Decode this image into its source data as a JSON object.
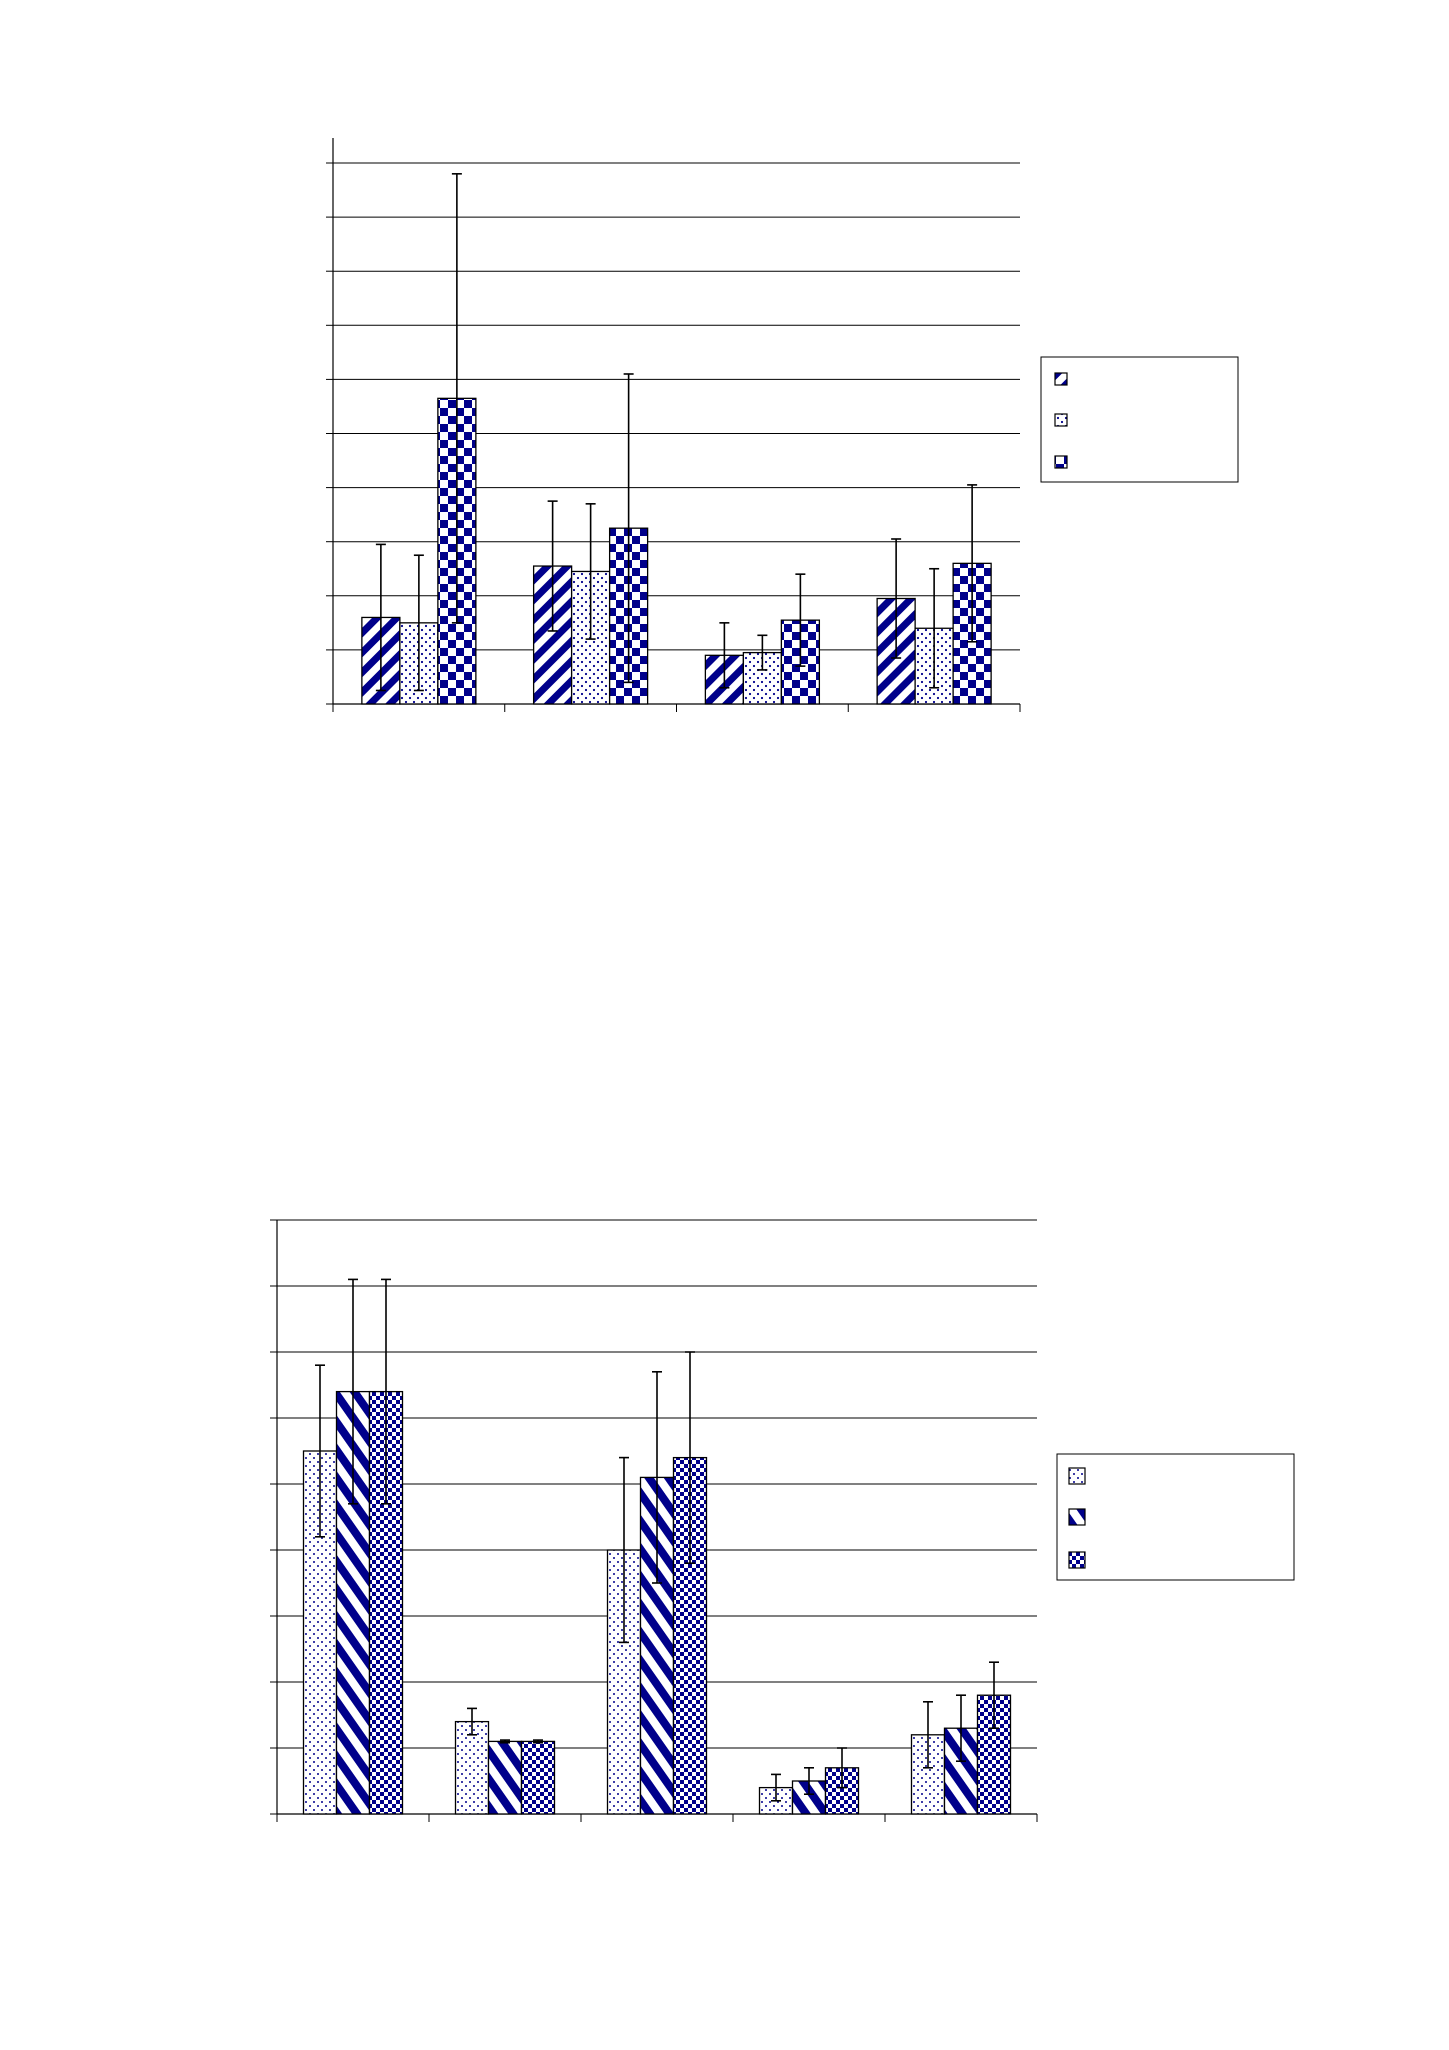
{
  "colors": {
    "navy": "#00008b",
    "grid": "#000000",
    "background": "#ffffff"
  },
  "chart_data": [
    {
      "type": "bar",
      "title": "",
      "xlabel": "",
      "ylabel": "",
      "ylim": [
        0,
        10
      ],
      "grid": true,
      "legend_position": "right",
      "categories": [
        "",
        "",
        "",
        ""
      ],
      "series": [
        {
          "pattern": "diagonal-stripes",
          "values": [
            1.6,
            2.55,
            0.9,
            1.95
          ],
          "errors": [
            1.35,
            1.2,
            0.6,
            1.1
          ]
        },
        {
          "pattern": "dots",
          "values": [
            1.5,
            2.45,
            0.95,
            1.4
          ],
          "errors": [
            1.25,
            1.25,
            0.32,
            1.1
          ]
        },
        {
          "pattern": "checkerboard",
          "values": [
            5.65,
            3.25,
            1.55,
            2.6
          ],
          "errors": [
            4.15,
            2.85,
            0.85,
            1.45
          ]
        }
      ]
    },
    {
      "type": "bar",
      "title": "",
      "xlabel": "",
      "ylabel": "",
      "ylim": [
        0,
        9
      ],
      "grid": true,
      "legend_position": "right",
      "categories": [
        "",
        "",
        "",
        "",
        ""
      ],
      "series": [
        {
          "pattern": "dots",
          "values": [
            5.5,
            1.4,
            4.0,
            0.4,
            1.2
          ],
          "errors": [
            1.3,
            0.2,
            1.4,
            0.2,
            0.5
          ]
        },
        {
          "pattern": "wide-diagonal-stripes",
          "values": [
            6.4,
            1.1,
            5.1,
            0.5,
            1.3
          ],
          "errors": [
            1.7,
            0.02,
            1.6,
            0.2,
            0.5
          ]
        },
        {
          "pattern": "small-checks",
          "values": [
            6.4,
            1.1,
            5.4,
            0.7,
            1.8
          ],
          "errors": [
            1.7,
            0.02,
            1.6,
            0.3,
            0.5
          ]
        }
      ]
    }
  ]
}
